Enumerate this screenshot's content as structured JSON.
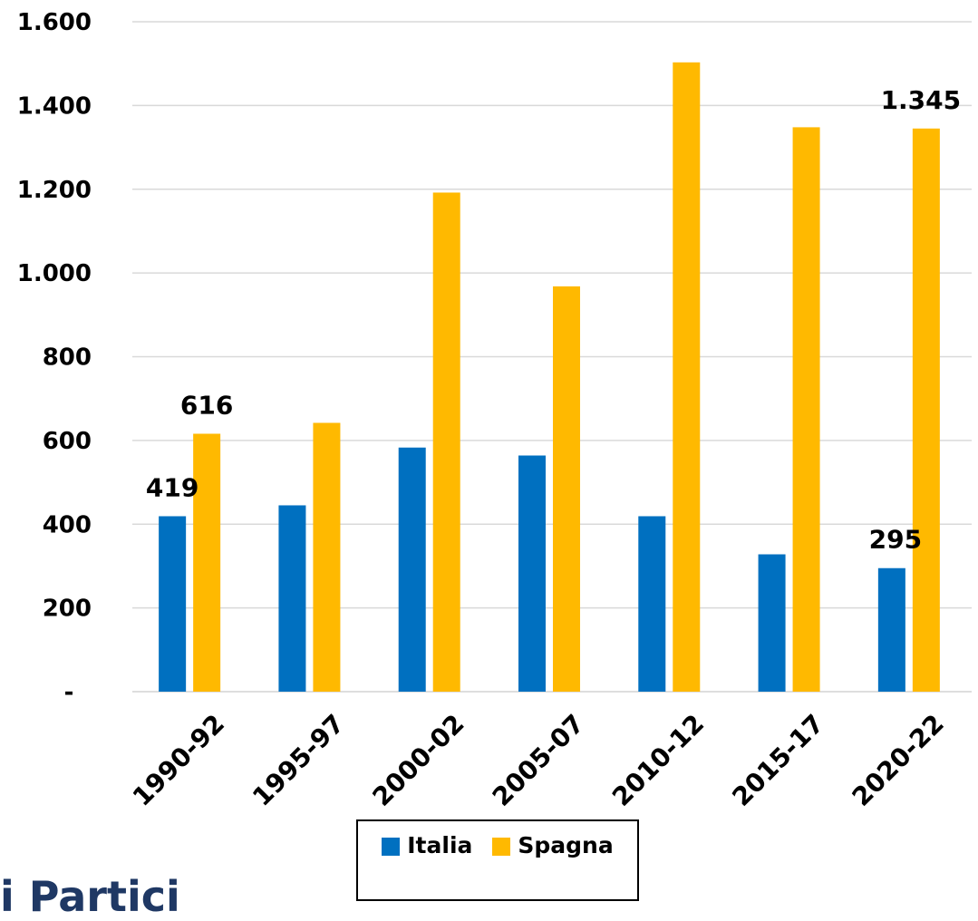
{
  "footer_text": "i Partici",
  "legend": {
    "items": [
      {
        "label": "Italia",
        "color": "#0070c0"
      },
      {
        "label": "Spagna",
        "color": "#ffb900"
      }
    ]
  },
  "chart_data": {
    "type": "bar",
    "title": "",
    "xlabel": "",
    "ylabel": "",
    "ylim": [
      0,
      1600
    ],
    "y_ticks": [
      {
        "value": 0,
        "label": "-"
      },
      {
        "value": 200,
        "label": "200"
      },
      {
        "value": 400,
        "label": "400"
      },
      {
        "value": 600,
        "label": "600"
      },
      {
        "value": 800,
        "label": "800"
      },
      {
        "value": 1000,
        "label": "1.000"
      },
      {
        "value": 1200,
        "label": "1.200"
      },
      {
        "value": 1400,
        "label": "1.400"
      },
      {
        "value": 1600,
        "label": "1.600"
      }
    ],
    "grid": true,
    "legend_position": "bottom",
    "categories": [
      "1990-92",
      "1995-97",
      "2000-02",
      "2005-07",
      "2010-12",
      "2015-17",
      "2020-22"
    ],
    "series": [
      {
        "name": "Italia",
        "color": "#0070c0",
        "values": [
          419,
          445,
          583,
          564,
          419,
          328,
          295
        ]
      },
      {
        "name": "Spagna",
        "color": "#ffb900",
        "values": [
          616,
          642,
          1192,
          968,
          1503,
          1348,
          1345
        ]
      }
    ],
    "data_labels": [
      {
        "series": 0,
        "index": 0,
        "text": "419"
      },
      {
        "series": 1,
        "index": 0,
        "text": "616"
      },
      {
        "series": 0,
        "index": 6,
        "text": "295"
      },
      {
        "series": 1,
        "index": 6,
        "text": "1.345"
      }
    ]
  }
}
